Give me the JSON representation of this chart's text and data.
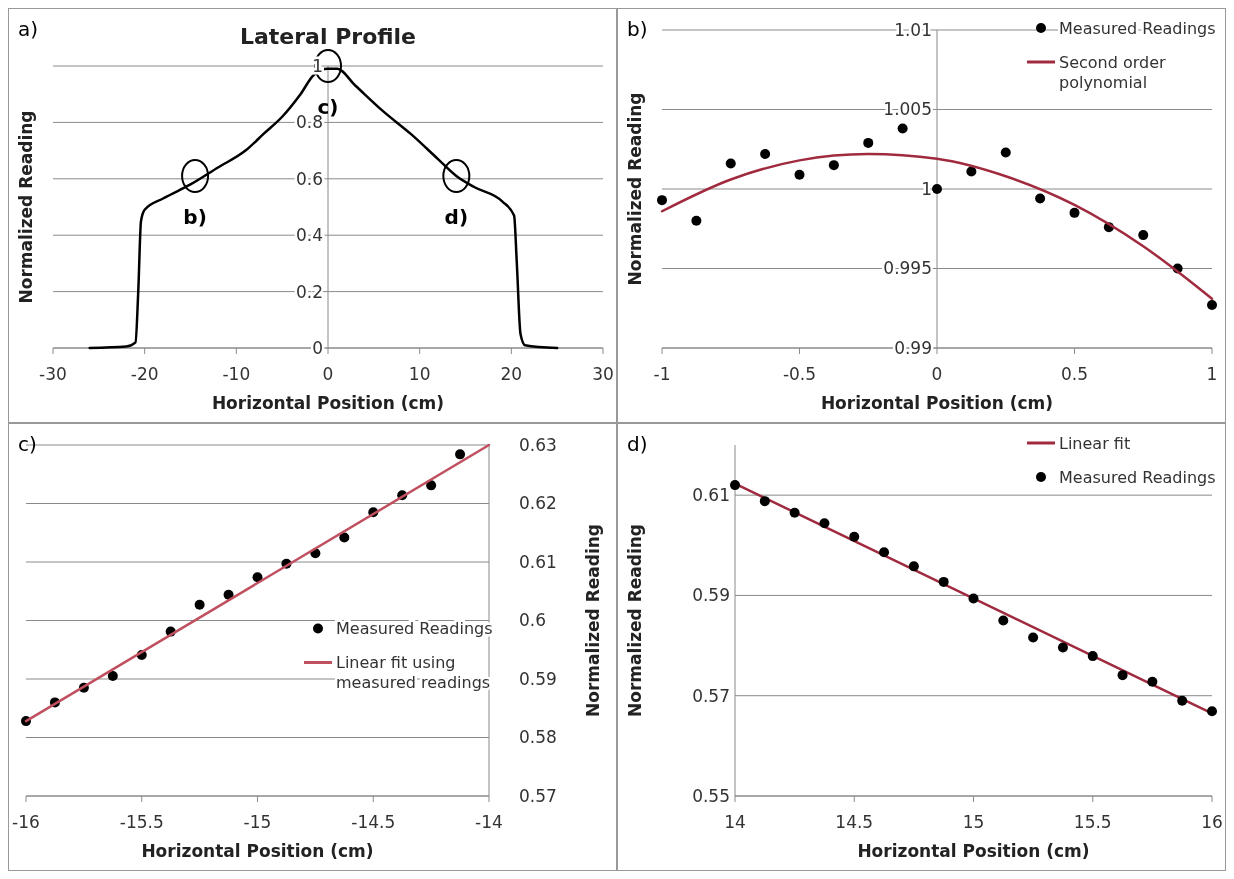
{
  "chart_data": [
    {
      "type": "line",
      "title": "Lateral Profile",
      "xlabel": "Horizontal Position  (cm)",
      "ylabel": "Normalized Reading",
      "xlim": [
        -30,
        30
      ],
      "xticks": [
        -30,
        -20,
        -10,
        0,
        10,
        20,
        30
      ],
      "ylim": [
        0,
        1
      ],
      "yticks": [
        0,
        0.2,
        0.4,
        0.6,
        0.8,
        1
      ],
      "grid": "y",
      "legend": false,
      "series": [
        {
          "color": "#000000",
          "x": [
            -26,
            -22,
            -21,
            -20.7,
            -20.4,
            -20,
            -18,
            -15,
            -12,
            -9,
            -7,
            -5,
            -3,
            -1.5,
            0,
            1,
            3,
            6,
            9,
            12,
            14,
            16,
            19,
            20.3,
            20.6,
            21,
            21.5,
            25
          ],
          "values": [
            0,
            0.005,
            0.02,
            0.2,
            0.45,
            0.49,
            0.53,
            0.58,
            0.64,
            0.7,
            0.76,
            0.82,
            0.9,
            0.97,
            0.99,
            0.99,
            0.93,
            0.84,
            0.76,
            0.67,
            0.61,
            0.57,
            0.52,
            0.47,
            0.3,
            0.05,
            0.01,
            0
          ]
        }
      ],
      "annotations": [
        "a)",
        {
          "text": "b)",
          "x": -14.5,
          "y": 0.61
        },
        {
          "text": "c)",
          "x": 0,
          "y": 1
        },
        {
          "text": "d)",
          "x": 14,
          "y": 0.61
        }
      ]
    },
    {
      "type": "scatter",
      "xlabel": "Horizontal Position  (cm)",
      "ylabel": "Normalized Reading",
      "xlim": [
        -1,
        1
      ],
      "xticks": [
        -1,
        -0.5,
        0,
        0.5,
        1
      ],
      "ylim": [
        0.99,
        1.01
      ],
      "yticks": [
        0.99,
        0.995,
        1,
        1.005,
        1.01
      ],
      "grid": "y",
      "legend": "top right",
      "series": [
        {
          "name": "Measured Readings",
          "marker": "circle",
          "color": "#000000",
          "x": [
            -1,
            -0.875,
            -0.75,
            -0.625,
            -0.5,
            -0.375,
            -0.25,
            -0.125,
            0,
            0.125,
            0.25,
            0.375,
            0.5,
            0.625,
            0.75,
            0.875,
            1
          ],
          "values": [
            0.9993,
            0.998,
            1.0016,
            1.0022,
            1.0009,
            1.0015,
            1.0029,
            1.0038,
            1.0,
            1.0011,
            1.0023,
            0.9994,
            0.9985,
            0.9976,
            0.9971,
            0.995,
            0.9927
          ]
        },
        {
          "name": "Second order polynomial",
          "type": "line",
          "color": "#a02b3f",
          "x": [
            -1,
            -0.75,
            -0.5,
            -0.25,
            0,
            0.25,
            0.5,
            0.75,
            1
          ],
          "values": [
            0.9986,
            1.0006,
            1.0018,
            1.0022,
            1.0019,
            1.0008,
            0.999,
            0.9964,
            0.9931
          ]
        }
      ],
      "annotations": [
        "b)"
      ]
    },
    {
      "type": "scatter",
      "xlabel": "Horizontal Position  (cm)",
      "y2label": "Normalized Reading",
      "xlim": [
        -16,
        -14
      ],
      "xticks": [
        -16,
        -15.5,
        -15,
        -14.5,
        -14
      ],
      "y2lim": [
        0.57,
        0.63
      ],
      "y2ticks": [
        0.57,
        0.58,
        0.59,
        0.6,
        0.61,
        0.62,
        0.63
      ],
      "grid": "y",
      "legend": "right",
      "series": [
        {
          "name": "Measured Readings",
          "marker": "circle",
          "axis": "y2",
          "color": "#000000",
          "x": [
            -16,
            -15.875,
            -15.75,
            -15.625,
            -15.5,
            -15.375,
            -15.25,
            -15.125,
            -15,
            -14.875,
            -14.75,
            -14.625,
            -14.5,
            -14.375,
            -14.25,
            -14.125
          ],
          "values": [
            0.5828,
            0.586,
            0.5885,
            0.5905,
            0.5941,
            0.5981,
            0.6027,
            0.6044,
            0.6074,
            0.6097,
            0.6115,
            0.6142,
            0.6185,
            0.6214,
            0.6231,
            0.6284
          ]
        },
        {
          "name": "Linear fit using measured readings",
          "type": "line",
          "axis": "y2",
          "color": "#c0505f",
          "x": [
            -16,
            -14
          ],
          "values": [
            0.5828,
            0.63
          ]
        }
      ],
      "annotations": [
        "c)"
      ]
    },
    {
      "type": "scatter",
      "xlabel": "Horizontal Position  (cm)",
      "ylabel": "Normalized Reading",
      "xlim": [
        14,
        16
      ],
      "xticks": [
        14,
        14.5,
        15,
        15.5,
        16
      ],
      "ylim": [
        0.55,
        0.62
      ],
      "yticks": [
        0.55,
        0.57,
        0.59,
        0.61
      ],
      "grid": "y",
      "legend": "top right",
      "series": [
        {
          "name": "Linear fit",
          "type": "line",
          "color": "#a02b3f",
          "x": [
            14,
            16
          ],
          "values": [
            0.6123,
            0.5665
          ]
        },
        {
          "name": "Measured Readings",
          "marker": "circle",
          "color": "#000000",
          "x": [
            14,
            14.125,
            14.25,
            14.375,
            14.5,
            14.625,
            14.75,
            14.875,
            15,
            15.125,
            15.25,
            15.375,
            15.5,
            15.625,
            15.75,
            15.875,
            16
          ],
          "values": [
            0.612,
            0.6088,
            0.6065,
            0.6044,
            0.6017,
            0.5986,
            0.5958,
            0.5927,
            0.5894,
            0.585,
            0.5816,
            0.5796,
            0.5779,
            0.5741,
            0.5728,
            0.569,
            0.5669
          ]
        }
      ],
      "annotations": [
        "d)"
      ]
    }
  ]
}
